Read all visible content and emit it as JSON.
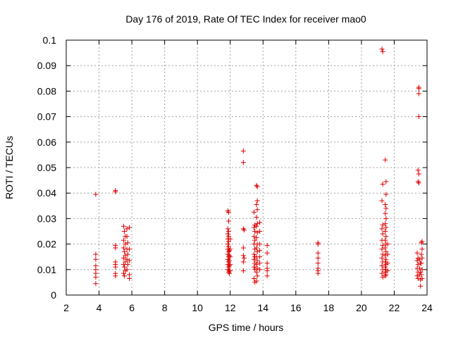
{
  "chart_data": {
    "type": "scatter",
    "title": "Day 176 of 2019, Rate Of TEC Index for receiver mao0",
    "xlabel": "GPS time / hours",
    "ylabel": "ROTI / TECUs",
    "xlim": [
      2,
      24
    ],
    "ylim": [
      0,
      0.1
    ],
    "xticks": [
      "2",
      "4",
      "6",
      "8",
      "10",
      "12",
      "14",
      "16",
      "18",
      "20",
      "22",
      "24"
    ],
    "yticks": [
      "0",
      "0.01",
      "0.02",
      "0.03",
      "0.04",
      "0.05",
      "0.06",
      "0.07",
      "0.08",
      "0.09",
      "0.1"
    ],
    "grid": true,
    "marker": "+",
    "color": "#e00000",
    "series": [
      {
        "name": "ROTI",
        "points": [
          [
            3.8,
            0.0395
          ],
          [
            3.8,
            0.016
          ],
          [
            3.8,
            0.014
          ],
          [
            3.8,
            0.0115
          ],
          [
            3.8,
            0.01
          ],
          [
            3.8,
            0.0085
          ],
          [
            3.8,
            0.007
          ],
          [
            3.8,
            0.0045
          ],
          [
            5.0,
            0.041
          ],
          [
            5.0,
            0.0405
          ],
          [
            5.0,
            0.0195
          ],
          [
            5.0,
            0.0185
          ],
          [
            5.0,
            0.013
          ],
          [
            5.0,
            0.012
          ],
          [
            5.0,
            0.011
          ],
          [
            5.0,
            0.0085
          ],
          [
            5.0,
            0.0075
          ],
          [
            5.5,
            0.027
          ],
          [
            5.55,
            0.025
          ],
          [
            5.6,
            0.023
          ],
          [
            5.5,
            0.0215
          ],
          [
            5.6,
            0.02
          ],
          [
            5.5,
            0.0185
          ],
          [
            5.55,
            0.017
          ],
          [
            5.6,
            0.0155
          ],
          [
            5.5,
            0.0145
          ],
          [
            5.6,
            0.013
          ],
          [
            5.5,
            0.012
          ],
          [
            5.55,
            0.011
          ],
          [
            5.6,
            0.0095
          ],
          [
            5.5,
            0.0085
          ],
          [
            5.55,
            0.0075
          ],
          [
            5.7,
            0.026
          ],
          [
            5.7,
            0.023
          ],
          [
            5.75,
            0.0205
          ],
          [
            5.7,
            0.018
          ],
          [
            5.75,
            0.016
          ],
          [
            5.7,
            0.014
          ],
          [
            5.75,
            0.012
          ],
          [
            5.7,
            0.01
          ],
          [
            5.85,
            0.0265
          ],
          [
            5.85,
            0.018
          ],
          [
            5.85,
            0.0135
          ],
          [
            5.85,
            0.008
          ],
          [
            5.85,
            0.0065
          ],
          [
            11.85,
            0.033
          ],
          [
            11.9,
            0.0325
          ],
          [
            11.9,
            0.029
          ],
          [
            11.85,
            0.026
          ],
          [
            11.9,
            0.025
          ],
          [
            11.85,
            0.024
          ],
          [
            11.9,
            0.023
          ],
          [
            11.85,
            0.022
          ],
          [
            11.9,
            0.021
          ],
          [
            11.85,
            0.02
          ],
          [
            11.9,
            0.019
          ],
          [
            11.85,
            0.018
          ],
          [
            11.95,
            0.0175
          ],
          [
            11.9,
            0.017
          ],
          [
            11.85,
            0.016
          ],
          [
            11.95,
            0.0155
          ],
          [
            11.9,
            0.015
          ],
          [
            11.85,
            0.014
          ],
          [
            11.95,
            0.0135
          ],
          [
            11.9,
            0.013
          ],
          [
            11.85,
            0.012
          ],
          [
            11.95,
            0.0115
          ],
          [
            11.9,
            0.011
          ],
          [
            11.85,
            0.01
          ],
          [
            11.95,
            0.0095
          ],
          [
            11.9,
            0.009
          ],
          [
            11.95,
            0.0085
          ],
          [
            12.0,
            0.022
          ],
          [
            12.0,
            0.018
          ],
          [
            12.0,
            0.015
          ],
          [
            12.0,
            0.012
          ],
          [
            12.0,
            0.0095
          ],
          [
            12.8,
            0.0565
          ],
          [
            12.8,
            0.052
          ],
          [
            12.8,
            0.026
          ],
          [
            12.85,
            0.0255
          ],
          [
            12.8,
            0.0185
          ],
          [
            12.8,
            0.0155
          ],
          [
            12.85,
            0.0145
          ],
          [
            12.8,
            0.013
          ],
          [
            12.8,
            0.0095
          ],
          [
            13.45,
            0.0325
          ],
          [
            13.5,
            0.0275
          ],
          [
            13.45,
            0.0265
          ],
          [
            13.5,
            0.025
          ],
          [
            13.45,
            0.023
          ],
          [
            13.5,
            0.0215
          ],
          [
            13.45,
            0.02
          ],
          [
            13.5,
            0.018
          ],
          [
            13.45,
            0.016
          ],
          [
            13.5,
            0.015
          ],
          [
            13.45,
            0.014
          ],
          [
            13.5,
            0.0125
          ],
          [
            13.45,
            0.011
          ],
          [
            13.5,
            0.01
          ],
          [
            13.45,
            0.0065
          ],
          [
            13.5,
            0.005
          ],
          [
            13.6,
            0.043
          ],
          [
            13.65,
            0.0425
          ],
          [
            13.65,
            0.037
          ],
          [
            13.6,
            0.0355
          ],
          [
            13.65,
            0.0335
          ],
          [
            13.6,
            0.0305
          ],
          [
            13.65,
            0.028
          ],
          [
            13.6,
            0.027
          ],
          [
            13.65,
            0.0245
          ],
          [
            13.6,
            0.0225
          ],
          [
            13.65,
            0.02
          ],
          [
            13.6,
            0.0185
          ],
          [
            13.65,
            0.017
          ],
          [
            13.6,
            0.015
          ],
          [
            13.65,
            0.0135
          ],
          [
            13.6,
            0.012
          ],
          [
            13.65,
            0.0105
          ],
          [
            13.6,
            0.009
          ],
          [
            13.65,
            0.0075
          ],
          [
            13.6,
            0.0055
          ],
          [
            13.8,
            0.0285
          ],
          [
            13.8,
            0.025
          ],
          [
            13.8,
            0.02
          ],
          [
            13.8,
            0.0175
          ],
          [
            13.8,
            0.015
          ],
          [
            13.8,
            0.0125
          ],
          [
            13.8,
            0.01
          ],
          [
            14.25,
            0.0195
          ],
          [
            14.25,
            0.0165
          ],
          [
            14.25,
            0.0125
          ],
          [
            14.25,
            0.0105
          ],
          [
            14.25,
            0.0095
          ],
          [
            14.25,
            0.0075
          ],
          [
            17.35,
            0.0205
          ],
          [
            17.35,
            0.02
          ],
          [
            17.35,
            0.0165
          ],
          [
            17.35,
            0.0145
          ],
          [
            17.35,
            0.0125
          ],
          [
            17.35,
            0.0105
          ],
          [
            17.35,
            0.0095
          ],
          [
            17.35,
            0.0085
          ],
          [
            21.25,
            0.0965
          ],
          [
            21.3,
            0.0955
          ],
          [
            21.3,
            0.0435
          ],
          [
            21.25,
            0.037
          ],
          [
            21.3,
            0.0275
          ],
          [
            21.25,
            0.026
          ],
          [
            21.3,
            0.024
          ],
          [
            21.25,
            0.0215
          ],
          [
            21.3,
            0.0195
          ],
          [
            21.25,
            0.018
          ],
          [
            21.3,
            0.016
          ],
          [
            21.25,
            0.0145
          ],
          [
            21.3,
            0.013
          ],
          [
            21.25,
            0.0115
          ],
          [
            21.3,
            0.01
          ],
          [
            21.25,
            0.0085
          ],
          [
            21.3,
            0.007
          ],
          [
            21.45,
            0.053
          ],
          [
            21.5,
            0.0445
          ],
          [
            21.5,
            0.0395
          ],
          [
            21.45,
            0.0355
          ],
          [
            21.5,
            0.034
          ],
          [
            21.45,
            0.032
          ],
          [
            21.5,
            0.03
          ],
          [
            21.45,
            0.028
          ],
          [
            21.5,
            0.0265
          ],
          [
            21.45,
            0.025
          ],
          [
            21.5,
            0.023
          ],
          [
            21.45,
            0.0215
          ],
          [
            21.5,
            0.02
          ],
          [
            21.45,
            0.0185
          ],
          [
            21.5,
            0.017
          ],
          [
            21.45,
            0.0155
          ],
          [
            21.5,
            0.014
          ],
          [
            21.45,
            0.013
          ],
          [
            21.5,
            0.012
          ],
          [
            21.45,
            0.011
          ],
          [
            21.5,
            0.01
          ],
          [
            21.45,
            0.009
          ],
          [
            21.5,
            0.008
          ],
          [
            21.45,
            0.0075
          ],
          [
            21.6,
            0.02
          ],
          [
            21.6,
            0.016
          ],
          [
            21.6,
            0.0125
          ],
          [
            21.6,
            0.0095
          ],
          [
            23.5,
            0.0815
          ],
          [
            23.5,
            0.081
          ],
          [
            23.5,
            0.079
          ],
          [
            23.5,
            0.07
          ],
          [
            23.45,
            0.049
          ],
          [
            23.5,
            0.0475
          ],
          [
            23.45,
            0.0445
          ],
          [
            23.5,
            0.044
          ],
          [
            23.4,
            0.0165
          ],
          [
            23.45,
            0.0145
          ],
          [
            23.4,
            0.0135
          ],
          [
            23.45,
            0.012
          ],
          [
            23.4,
            0.0105
          ],
          [
            23.45,
            0.009
          ],
          [
            23.4,
            0.0075
          ],
          [
            23.45,
            0.0065
          ],
          [
            23.55,
            0.014
          ],
          [
            23.6,
            0.0125
          ],
          [
            23.55,
            0.0105
          ],
          [
            23.6,
            0.009
          ],
          [
            23.55,
            0.008
          ],
          [
            23.6,
            0.006
          ],
          [
            23.6,
            0.0035
          ],
          [
            23.7,
            0.021
          ],
          [
            23.65,
            0.0205
          ],
          [
            23.7,
            0.018
          ],
          [
            23.65,
            0.016
          ],
          [
            23.7,
            0.0145
          ],
          [
            23.65,
            0.0125
          ],
          [
            23.7,
            0.01
          ],
          [
            23.65,
            0.008
          ],
          [
            23.7,
            0.0065
          ]
        ]
      }
    ]
  }
}
